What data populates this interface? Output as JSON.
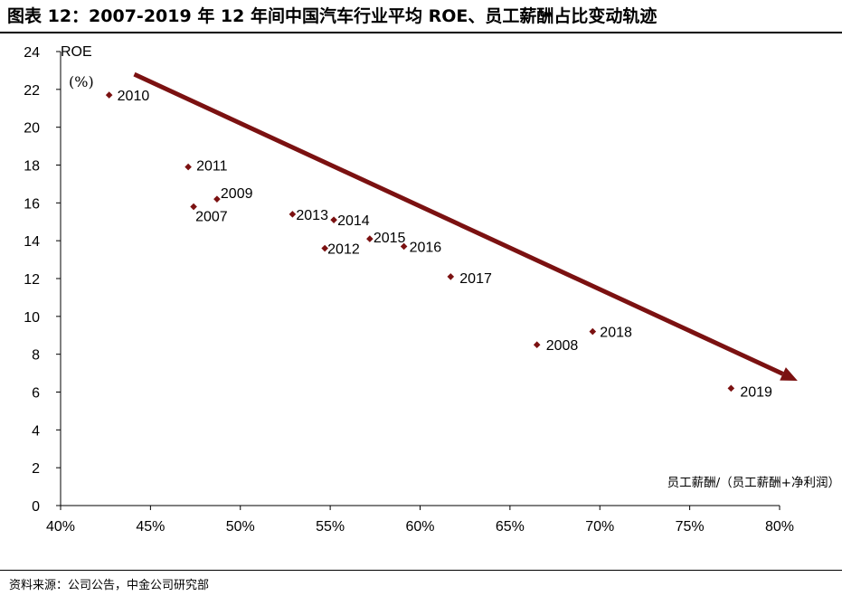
{
  "header": {
    "title": "图表 12：2007-2019 年 12 年间中国汽车行业平均 ROE、员工薪酬占比变动轨迹"
  },
  "footer": {
    "source": "资料来源：公司公告，中金公司研究部"
  },
  "colors": {
    "marker": "#7b1111",
    "trend_arrow": "#7b1111",
    "axis": "#000000"
  },
  "chart_data": {
    "type": "scatter",
    "title": "2007-2019 年 12 年间中国汽车行业平均 ROE、员工薪酬占比变动轨迹",
    "xlabel": "员工薪酬/（员工薪酬+净利润）",
    "ylabel": "ROE",
    "ylabel_unit": "(%)",
    "xlim": [
      0.4,
      0.8
    ],
    "ylim": [
      0,
      24
    ],
    "x_ticks": [
      0.4,
      0.45,
      0.5,
      0.55,
      0.6,
      0.65,
      0.7,
      0.75,
      0.8
    ],
    "x_tick_labels": [
      "40%",
      "45%",
      "50%",
      "55%",
      "60%",
      "65%",
      "70%",
      "75%",
      "80%"
    ],
    "y_ticks": [
      0,
      2,
      4,
      6,
      8,
      10,
      12,
      14,
      16,
      18,
      20,
      22,
      24
    ],
    "y_tick_labels": [
      "0",
      "2",
      "4",
      "6",
      "8",
      "10",
      "12",
      "14",
      "16",
      "18",
      "20",
      "22",
      "24"
    ],
    "grid": false,
    "marker": "diamond",
    "points": [
      {
        "label": "2010",
        "x": 0.427,
        "y": 21.7
      },
      {
        "label": "2011",
        "x": 0.471,
        "y": 17.9
      },
      {
        "label": "2009",
        "x": 0.487,
        "y": 16.2
      },
      {
        "label": "2007",
        "x": 0.474,
        "y": 15.8
      },
      {
        "label": "2013",
        "x": 0.529,
        "y": 15.4
      },
      {
        "label": "2014",
        "x": 0.552,
        "y": 15.1
      },
      {
        "label": "2012",
        "x": 0.547,
        "y": 13.6
      },
      {
        "label": "2015",
        "x": 0.572,
        "y": 14.1
      },
      {
        "label": "2016",
        "x": 0.591,
        "y": 13.7
      },
      {
        "label": "2017",
        "x": 0.617,
        "y": 12.1
      },
      {
        "label": "2008",
        "x": 0.665,
        "y": 8.5
      },
      {
        "label": "2018",
        "x": 0.696,
        "y": 9.2
      },
      {
        "label": "2019",
        "x": 0.773,
        "y": 6.2
      }
    ],
    "trend_arrow": {
      "from": {
        "x": 0.441,
        "y": 22.8
      },
      "to": {
        "x": 0.81,
        "y": 6.6
      }
    }
  }
}
